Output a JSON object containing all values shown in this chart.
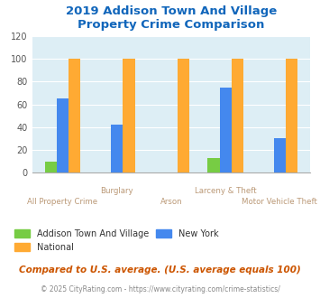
{
  "title": "2019 Addison Town And Village\nProperty Crime Comparison",
  "categories": [
    "All Property Crime",
    "Burglary",
    "Arson",
    "Larceny & Theft",
    "Motor Vehicle Theft"
  ],
  "addison_values": [
    10,
    0,
    0,
    13,
    0
  ],
  "national_values": [
    100,
    100,
    100,
    100,
    100
  ],
  "newyork_values": [
    65,
    42,
    0,
    75,
    30
  ],
  "colors": {
    "addison": "#77cc44",
    "national": "#ffaa33",
    "newyork": "#4488ee"
  },
  "ylim": [
    0,
    120
  ],
  "yticks": [
    0,
    20,
    40,
    60,
    80,
    100,
    120
  ],
  "bg_color": "#ddeef5",
  "title_color": "#1166bb",
  "xlabel_color": "#bb9977",
  "footnote1": "Compared to U.S. average. (U.S. average equals 100)",
  "footnote2": "© 2025 CityRating.com - https://www.cityrating.com/crime-statistics/",
  "legend_labels": [
    "Addison Town And Village",
    "National",
    "New York"
  ],
  "xlabel_stagger": [
    false,
    true,
    false,
    true,
    false
  ]
}
